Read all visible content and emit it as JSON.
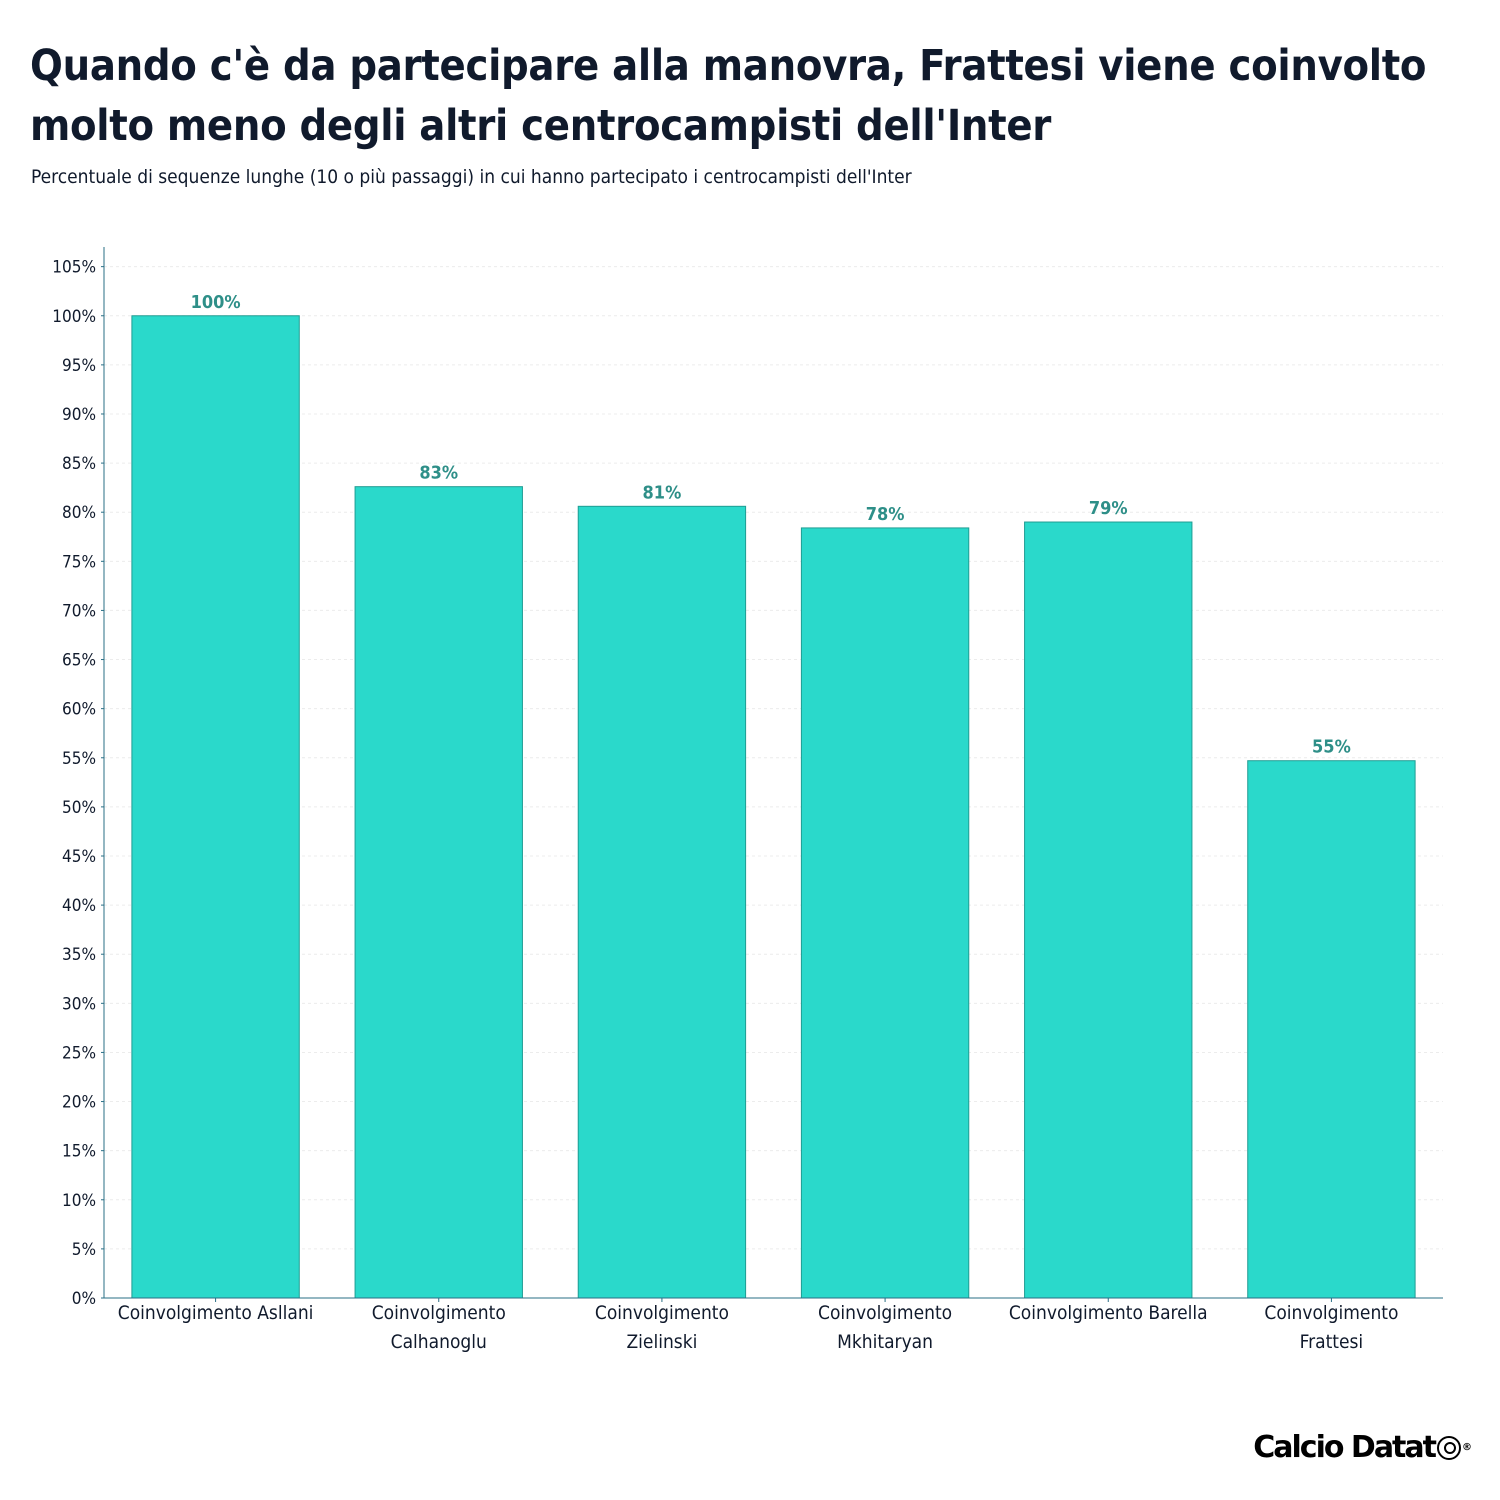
{
  "header": {
    "title": "Quando c'è da partecipare alla manovra, Frattesi viene coinvolto molto meno degli altri centrocampisti dell'Inter",
    "subtitle": "Percentuale di sequenze lunghe (10 o più passaggi) in cui hanno partecipato i centrocampisti dell'Inter"
  },
  "branding": {
    "logo_text": "Calcio Datat",
    "registered_mark": "®"
  },
  "colors": {
    "bar": "#2ad9cb",
    "bar_stroke": "#1f9d93",
    "data_label": "#2e8f88",
    "axis": "#2a6f86",
    "text": "#101a2c",
    "grid": "#ececec"
  },
  "chart_data": {
    "type": "bar",
    "categories": [
      [
        "Coinvolgimento Asllani"
      ],
      [
        "Coinvolgimento",
        "Calhanoglu"
      ],
      [
        "Coinvolgimento",
        "Zielinski"
      ],
      [
        "Coinvolgimento",
        "Mkhitaryan"
      ],
      [
        "Coinvolgimento Barella"
      ],
      [
        "Coinvolgimento",
        "Frattesi"
      ]
    ],
    "values": [
      100,
      82.6,
      80.6,
      78.4,
      79.0,
      54.7
    ],
    "value_labels": [
      "100%",
      "83%",
      "81%",
      "78%",
      "79%",
      "55%"
    ],
    "ylim": [
      0,
      107
    ],
    "yticks": [
      0,
      5,
      10,
      15,
      20,
      25,
      30,
      35,
      40,
      45,
      50,
      55,
      60,
      65,
      70,
      75,
      80,
      85,
      90,
      95,
      100,
      105
    ],
    "ytick_labels": [
      "0%",
      "5%",
      "10%",
      "15%",
      "20%",
      "25%",
      "30%",
      "35%",
      "40%",
      "45%",
      "50%",
      "55%",
      "60%",
      "65%",
      "70%",
      "75%",
      "80%",
      "85%",
      "90%",
      "95%",
      "100%",
      "105%"
    ],
    "grid": true,
    "xlabel": "",
    "ylabel": ""
  }
}
